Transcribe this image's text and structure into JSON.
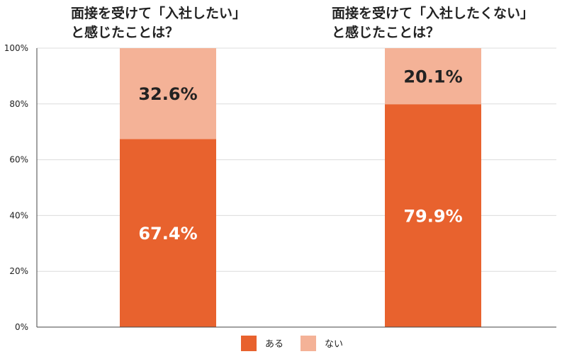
{
  "chart_data": {
    "type": "bar",
    "stacked": true,
    "categories": [
      [
        "面接を受けて「入社したい」",
        "と感じたことは？"
      ],
      [
        "面接を受けて「入社したくない」",
        "と感じたことは？"
      ]
    ],
    "series": [
      {
        "name": "ある",
        "values": [
          67.4,
          79.9
        ],
        "labels": [
          "67.4%",
          "79.9%"
        ],
        "color": "#E8622E",
        "label_color": "#FFFFFF"
      },
      {
        "name": "ない",
        "values": [
          32.6,
          20.1
        ],
        "labels": [
          "32.6%",
          "20.1%"
        ],
        "color": "#F4B297",
        "label_color": "#222222"
      }
    ],
    "yticks": [
      "0%",
      "20%",
      "40%",
      "60%",
      "80%",
      "100%"
    ],
    "ylim": [
      0,
      100
    ],
    "grid": true,
    "legend": "bottom-center"
  }
}
